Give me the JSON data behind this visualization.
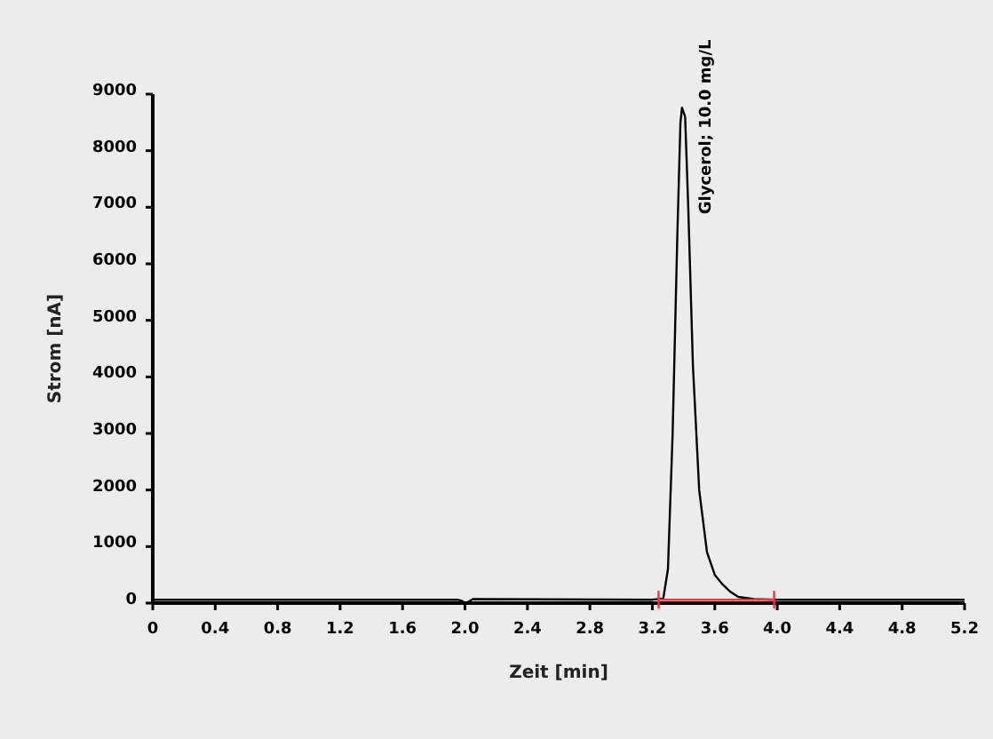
{
  "chart_data": {
    "type": "line",
    "xlabel": "Zeit [min]",
    "ylabel": "Strom [nA]",
    "xlim": [
      0,
      5.2
    ],
    "ylim": [
      0,
      9000
    ],
    "xticks": [
      0,
      0.4,
      0.8,
      1.2,
      1.6,
      {
        "value": 2,
        "label": "2.0"
      },
      2.4,
      2.8,
      3.2,
      3.6,
      {
        "value": 4,
        "label": "4.0"
      },
      4.4,
      4.8,
      5.2
    ],
    "yticks": [
      0,
      1000,
      2000,
      3000,
      4000,
      5000,
      6000,
      7000,
      8000,
      9000
    ],
    "grid": false,
    "marker": "none",
    "line_style": "solid",
    "series": [
      {
        "color": "#000000",
        "x": [
          0,
          1.95,
          1.98,
          2.0,
          2.02,
          2.05,
          3.2,
          3.27,
          3.3,
          3.33,
          3.36,
          3.38,
          3.39,
          3.41,
          3.43,
          3.46,
          3.5,
          3.55,
          3.6,
          3.65,
          3.7,
          3.75,
          3.85,
          4.0,
          4.2,
          5.2
        ],
        "values": [
          60,
          60,
          40,
          0,
          20,
          70,
          60,
          80,
          600,
          3000,
          6500,
          8500,
          8760,
          8600,
          7000,
          4200,
          2000,
          900,
          500,
          330,
          200,
          110,
          70,
          60,
          60,
          60
        ]
      },
      {
        "color": "#e8393c",
        "x": [
          3.24,
          3.98
        ],
        "values": [
          60,
          60
        ]
      }
    ],
    "annotations": [
      {
        "text": "Glycerol; 10.0 mg/L",
        "x": 3.39,
        "y": 8760
      }
    ]
  }
}
